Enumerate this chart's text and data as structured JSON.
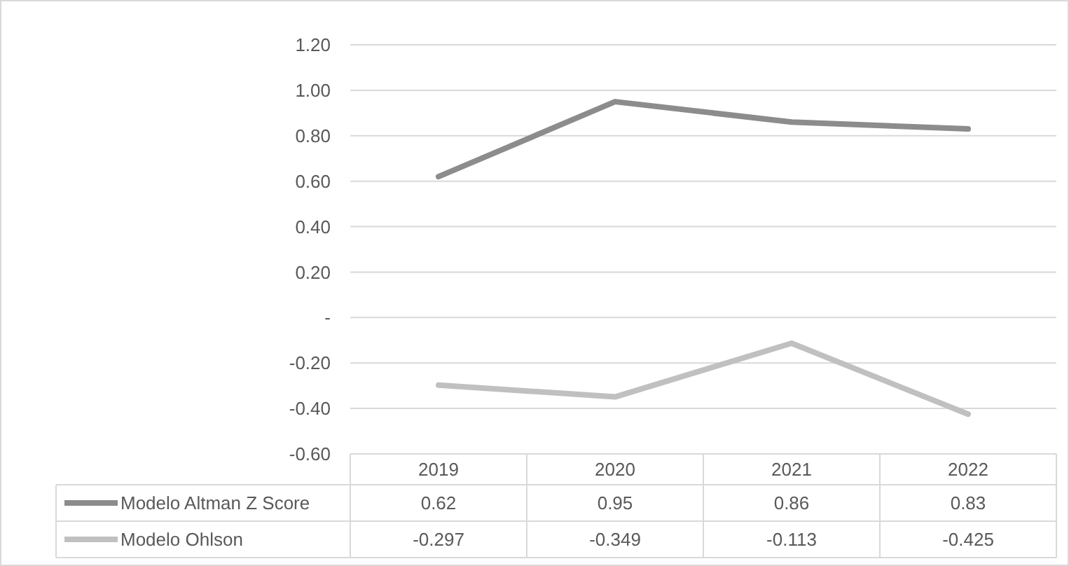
{
  "chart_data": {
    "type": "line",
    "categories": [
      "2019",
      "2020",
      "2021",
      "2022"
    ],
    "series": [
      {
        "name": "Modelo Altman Z Score",
        "color": "#8c8c8c",
        "values": [
          0.62,
          0.95,
          0.86,
          0.83
        ]
      },
      {
        "name": "Modelo Ohlson",
        "color": "#c0c0c0",
        "values": [
          -0.297,
          -0.349,
          -0.113,
          -0.425
        ]
      }
    ],
    "ylim": [
      -0.6,
      1.2
    ],
    "yticks": [
      {
        "value": -0.6,
        "label": "-0.60"
      },
      {
        "value": -0.4,
        "label": "-0.40"
      },
      {
        "value": -0.2,
        "label": "-0.20"
      },
      {
        "value": 0,
        "label": "-"
      },
      {
        "value": 0.2,
        "label": "0.20"
      },
      {
        "value": 0.4,
        "label": "0.40"
      },
      {
        "value": 0.6,
        "label": "0.60"
      },
      {
        "value": 0.8,
        "label": "0.80"
      },
      {
        "value": 1,
        "label": "1.00"
      },
      {
        "value": 1.2,
        "label": "1.20"
      }
    ],
    "grid": "y",
    "legend": "bottom",
    "data_labels": true,
    "marker": "none",
    "line_style": "solid"
  }
}
